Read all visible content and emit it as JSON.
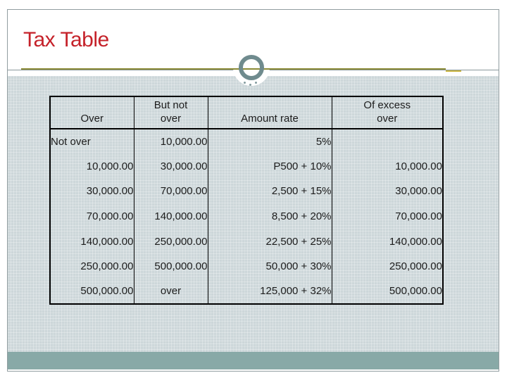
{
  "slide": {
    "title": "Tax Table"
  },
  "colors": {
    "title_red": "#c5222a",
    "slide_border": "#919da0",
    "divider_gray": "#8a989b",
    "content_bg": "#cdd7da",
    "footer_bar": "#88a9a7",
    "accent_olive": "#8a8a35",
    "accent_dash": "#c9b43e",
    "ring_teal": "#6f8b8e",
    "table_line": "#000000",
    "table_text": "#1c1c1c"
  },
  "table": {
    "columns": [
      "Over",
      "But not over",
      "Amount rate",
      "Of excess over"
    ],
    "rows": [
      [
        "Not over",
        "10,000.00",
        "5%",
        ""
      ],
      [
        "10,000.00",
        "30,000.00",
        "P500 + 10%",
        "10,000.00"
      ],
      [
        "30,000.00",
        "70,000.00",
        "2,500 + 15%",
        "30,000.00"
      ],
      [
        "70,000.00",
        "140,000.00",
        "8,500 + 20%",
        "70,000.00"
      ],
      [
        "140,000.00",
        "250,000.00",
        "22,500 + 25%",
        "140,000.00"
      ],
      [
        "250,000.00",
        "500,000.00",
        "50,000 + 30%",
        "250,000.00"
      ],
      [
        "500,000.00",
        "over",
        "125,000 + 32%",
        "500,000.00"
      ]
    ]
  }
}
